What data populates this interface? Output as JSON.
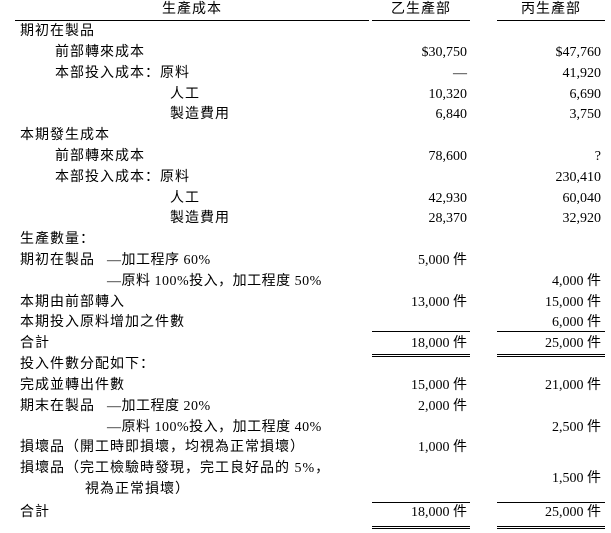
{
  "header": {
    "label": "生產成本",
    "col1": "乙生產部",
    "col2": "丙生產部"
  },
  "rows": [
    {
      "label": "期初在製品",
      "c1": "",
      "c2": ""
    },
    {
      "label": "前部轉來成本",
      "c1": "$30,750",
      "c2": "$47,760"
    },
    {
      "label": "本部投入成本：原料",
      "c1": "—",
      "c2": "41,920"
    },
    {
      "label": "人工",
      "c1": "10,320",
      "c2": "6,690"
    },
    {
      "label": "製造費用",
      "c1": "6,840",
      "c2": "3,750"
    },
    {
      "label": "本期發生成本",
      "c1": "",
      "c2": ""
    },
    {
      "label": "前部轉來成本",
      "c1": "78,600",
      "c2": "?"
    },
    {
      "label": "本部投入成本：原料",
      "c1": "",
      "c2": "230,410"
    },
    {
      "label": "人工",
      "c1": "42,930",
      "c2": "60,040"
    },
    {
      "label": "製造費用",
      "c1": "28,370",
      "c2": "32,920"
    },
    {
      "label": "生產數量：",
      "c1": "",
      "c2": ""
    },
    {
      "label": "期初在製品",
      "sub": "—加工程序 60%",
      "c1": "5,000 件",
      "c2": ""
    },
    {
      "label": "",
      "sub": "—原料 100%投入，加工程度 50%",
      "c1": "",
      "c2": "4,000 件"
    },
    {
      "label": "本期由前部轉入",
      "c1": "13,000 件",
      "c2": "15,000 件"
    },
    {
      "label": "本期投入原料增加之件數",
      "c1": "",
      "c2": "6,000 件"
    },
    {
      "label": "合計",
      "c1": "18,000 件",
      "c2": "25,000 件"
    },
    {
      "label": "投入件數分配如下：",
      "c1": "",
      "c2": ""
    },
    {
      "label": "完成並轉出件數",
      "c1": "15,000 件",
      "c2": "21,000 件"
    },
    {
      "label": "期末在製品",
      "sub": "—加工程度 20%",
      "c1": "2,000 件",
      "c2": ""
    },
    {
      "label": "",
      "sub": "—原料 100%投入，加工程度 40%",
      "c1": "",
      "c2": "2,500 件"
    },
    {
      "label": "損壞品（開工時即損壞，均視為正常損壞）",
      "c1": "1,000 件",
      "c2": ""
    },
    {
      "label": "損壞品（完工檢驗時發現，完工良好品的 5%，",
      "label2": "視為正常損壞）",
      "c1": "",
      "c2": "1,500 件"
    },
    {
      "label": "合計",
      "c1": "18,000 件",
      "c2": "25,000 件"
    }
  ]
}
